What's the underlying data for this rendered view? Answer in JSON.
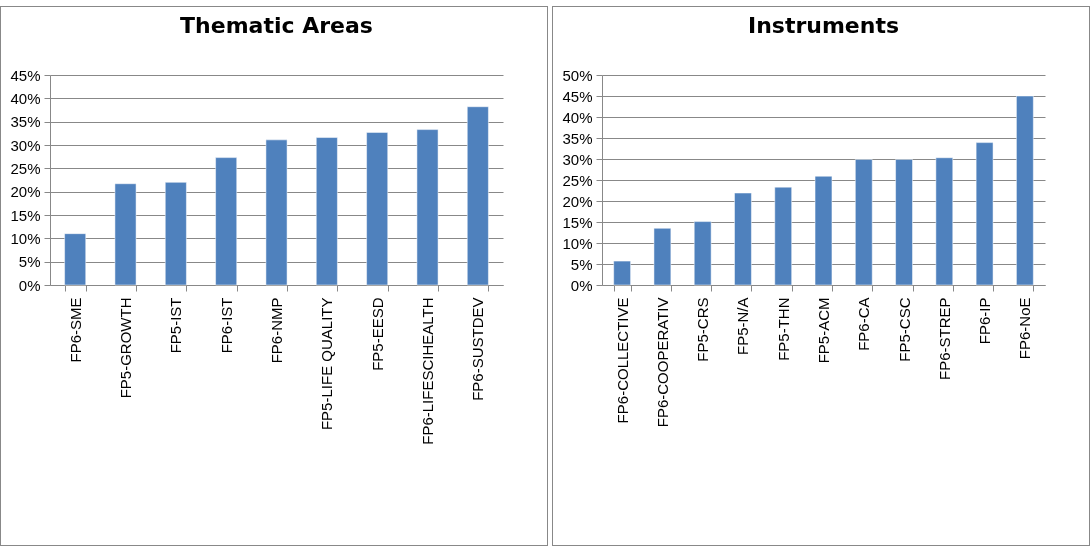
{
  "chart_data": [
    {
      "type": "bar",
      "title": "Thematic Areas",
      "categories": [
        "FP6-SME",
        "FP5-GROWTH",
        "FP5-IST",
        "FP6-IST",
        "FP6-NMP",
        "FP5-LIFE QUALITY",
        "FP5-EESD",
        "FP6-LIFESCIHEALTH",
        "FP6-SUSTDEV"
      ],
      "values": [
        11.0,
        21.7,
        22.0,
        27.3,
        31.1,
        31.6,
        32.7,
        33.3,
        38.2
      ],
      "color": "#4f81bd",
      "ylim": [
        0,
        45
      ],
      "yticks": [
        {
          "value": 0,
          "label": "0%"
        },
        {
          "value": 5,
          "label": "5%"
        },
        {
          "value": 10,
          "label": "10%"
        },
        {
          "value": 15,
          "label": "15%"
        },
        {
          "value": 20,
          "label": "20%"
        },
        {
          "value": 25,
          "label": "25%"
        },
        {
          "value": 30,
          "label": "30%"
        },
        {
          "value": 35,
          "label": "35%"
        },
        {
          "value": 40,
          "label": "40%"
        },
        {
          "value": 45,
          "label": "45%"
        }
      ],
      "grid": "y"
    },
    {
      "type": "bar",
      "title": "Instruments",
      "categories": [
        "FP6-COLLECTIVE",
        "FP6-COOPERATIV",
        "FP5-CRS",
        "FP5-N/A",
        "FP5-THN",
        "FP5-ACM",
        "FP6-CA",
        "FP5-CSC",
        "FP6-STREP",
        "FP6-IP",
        "FP6-NoE"
      ],
      "values": [
        5.7,
        13.5,
        15.1,
        21.9,
        23.3,
        25.9,
        29.9,
        29.9,
        30.3,
        33.9,
        45.0
      ],
      "color": "#4f81bd",
      "ylim": [
        0,
        50
      ],
      "yticks": [
        {
          "value": 0,
          "label": "0%"
        },
        {
          "value": 5,
          "label": "5%"
        },
        {
          "value": 10,
          "label": "10%"
        },
        {
          "value": 15,
          "label": "15%"
        },
        {
          "value": 20,
          "label": "20%"
        },
        {
          "value": 25,
          "label": "25%"
        },
        {
          "value": 30,
          "label": "30%"
        },
        {
          "value": 35,
          "label": "35%"
        },
        {
          "value": 40,
          "label": "40%"
        },
        {
          "value": 45,
          "label": "45%"
        },
        {
          "value": 50,
          "label": "50%"
        }
      ],
      "grid": "y"
    }
  ]
}
